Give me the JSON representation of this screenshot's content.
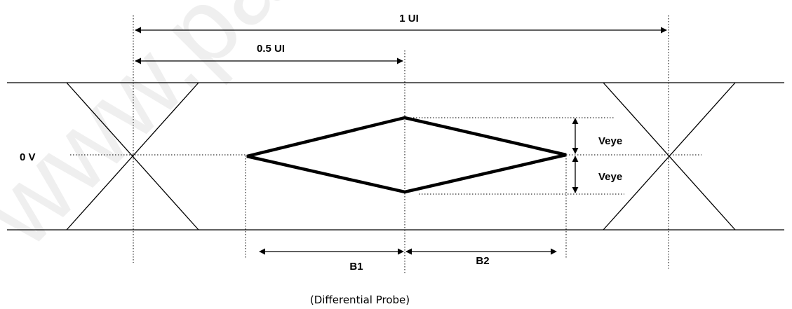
{
  "watermark": "www.pan",
  "labels": {
    "ui_full": "1 UI",
    "ui_half": "0.5 UI",
    "zero_volt": "0 V",
    "veye_top": "Veye",
    "veye_bottom": "Veye",
    "b1": "B1",
    "b2": "B2",
    "caption": "(Differential Probe)"
  },
  "colors": {
    "line": "#000000",
    "watermark": "#e3e3e3"
  }
}
